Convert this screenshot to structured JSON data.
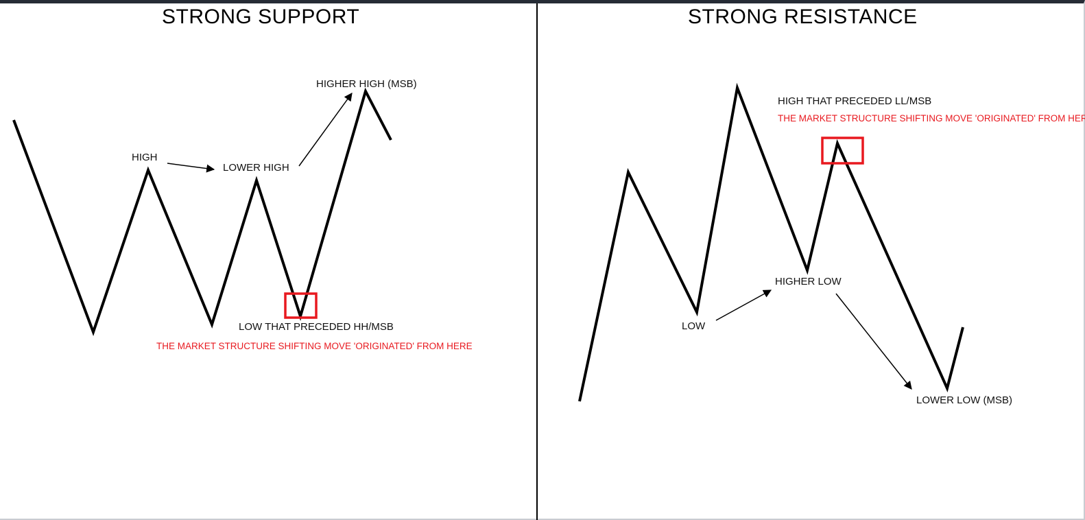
{
  "colors": {
    "line": "#000000",
    "highlight": "#e8191f",
    "note_text": "#e8191f",
    "header_bar": "#262c36"
  },
  "left_panel": {
    "title": "STRONG SUPPORT",
    "labels": {
      "high": "HIGH",
      "lower_high": "LOWER HIGH",
      "higher_high": "HIGHER HIGH (MSB)",
      "origin_low": "LOW THAT PRECEDED HH/MSB"
    },
    "note": "THE MARKET STRUCTURE SHIFTING MOVE 'ORIGINATED' FROM HERE"
  },
  "right_panel": {
    "title": "STRONG RESISTANCE",
    "labels": {
      "origin_high": "HIGH THAT PRECEDED LL/MSB",
      "higher_low": "HIGHER LOW",
      "low": "LOW",
      "lower_low": "LOWER LOW (MSB)"
    },
    "note": "THE MARKET STRUCTURE SHIFTING MOVE 'ORIGINATED' FROM HERE"
  }
}
